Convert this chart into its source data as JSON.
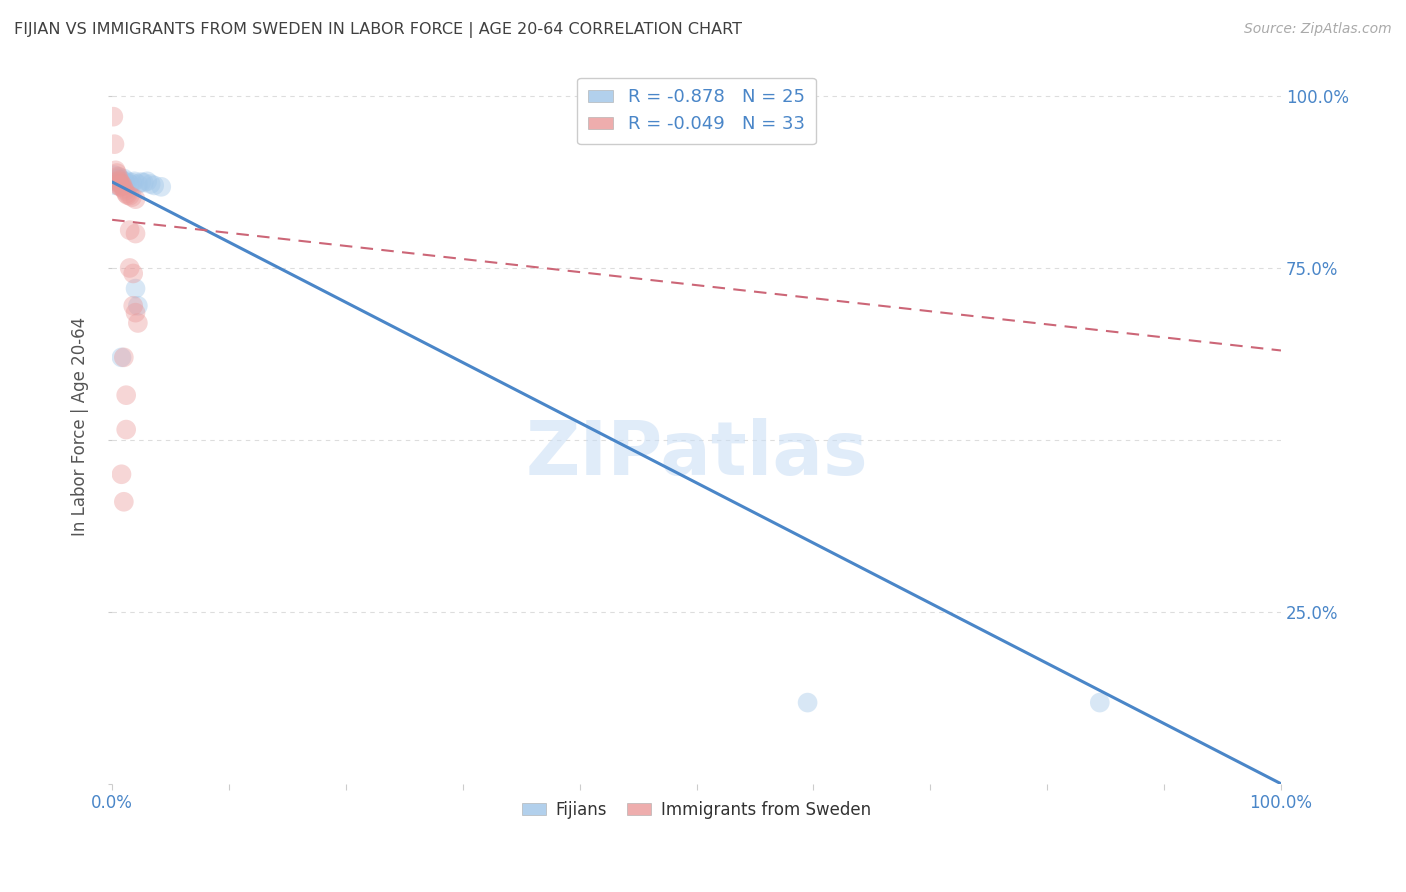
{
  "title": "FIJIAN VS IMMIGRANTS FROM SWEDEN IN LABOR FORCE | AGE 20-64 CORRELATION CHART",
  "source": "Source: ZipAtlas.com",
  "ylabel": "In Labor Force | Age 20-64",
  "watermark": "ZIPatlas",
  "legend_blue_r": "-0.878",
  "legend_blue_n": "25",
  "legend_pink_r": "-0.049",
  "legend_pink_n": "33",
  "blue_color": "#9fc5e8",
  "pink_color": "#ea9999",
  "line_blue": "#4a86c8",
  "line_pink": "#cc6677",
  "axis_label_color": "#4a86c8",
  "title_color": "#404040",
  "grid_color": "#dddddd",
  "blue_points": [
    [
      0.002,
      0.885
    ],
    [
      0.003,
      0.87
    ],
    [
      0.004,
      0.875
    ],
    [
      0.005,
      0.88
    ],
    [
      0.006,
      0.882
    ],
    [
      0.007,
      0.875
    ],
    [
      0.008,
      0.878
    ],
    [
      0.01,
      0.88
    ],
    [
      0.011,
      0.875
    ],
    [
      0.013,
      0.876
    ],
    [
      0.015,
      0.872
    ],
    [
      0.017,
      0.874
    ],
    [
      0.019,
      0.876
    ],
    [
      0.022,
      0.872
    ],
    [
      0.025,
      0.875
    ],
    [
      0.027,
      0.874
    ],
    [
      0.03,
      0.876
    ],
    [
      0.033,
      0.872
    ],
    [
      0.036,
      0.87
    ],
    [
      0.042,
      0.868
    ],
    [
      0.02,
      0.72
    ],
    [
      0.022,
      0.695
    ],
    [
      0.008,
      0.62
    ],
    [
      0.595,
      0.118
    ],
    [
      0.845,
      0.118
    ]
  ],
  "pink_points": [
    [
      0.001,
      0.97
    ],
    [
      0.002,
      0.93
    ],
    [
      0.003,
      0.892
    ],
    [
      0.004,
      0.888
    ],
    [
      0.005,
      0.883
    ],
    [
      0.005,
      0.876
    ],
    [
      0.005,
      0.87
    ],
    [
      0.006,
      0.878
    ],
    [
      0.006,
      0.873
    ],
    [
      0.007,
      0.875
    ],
    [
      0.007,
      0.868
    ],
    [
      0.008,
      0.872
    ],
    [
      0.008,
      0.868
    ],
    [
      0.009,
      0.87
    ],
    [
      0.01,
      0.865
    ],
    [
      0.011,
      0.862
    ],
    [
      0.012,
      0.858
    ],
    [
      0.013,
      0.856
    ],
    [
      0.015,
      0.855
    ],
    [
      0.017,
      0.853
    ],
    [
      0.02,
      0.85
    ],
    [
      0.015,
      0.805
    ],
    [
      0.02,
      0.8
    ],
    [
      0.015,
      0.75
    ],
    [
      0.018,
      0.742
    ],
    [
      0.018,
      0.695
    ],
    [
      0.02,
      0.685
    ],
    [
      0.022,
      0.67
    ],
    [
      0.01,
      0.62
    ],
    [
      0.012,
      0.565
    ],
    [
      0.012,
      0.515
    ],
    [
      0.008,
      0.45
    ],
    [
      0.01,
      0.41
    ]
  ],
  "blue_line": [
    [
      0.0,
      0.875
    ],
    [
      1.0,
      0.0
    ]
  ],
  "pink_line": [
    [
      0.0,
      0.82
    ],
    [
      1.0,
      0.63
    ]
  ],
  "xlim": [
    0.0,
    1.0
  ],
  "ylim": [
    0.0,
    1.04
  ],
  "xtick_positions": [
    0.0,
    0.1,
    0.2,
    0.3,
    0.4,
    0.5,
    0.6,
    0.7,
    0.8,
    0.9,
    1.0
  ],
  "ytick_positions": [
    0.0,
    0.25,
    0.5,
    0.75,
    1.0
  ],
  "xlabels_show": {
    "0.0": "0.0%",
    "1.0": "100.0%"
  },
  "right_ylabels": {
    "0.0": "",
    "0.25": "25.0%",
    "0.75": "75.0%",
    "1.0": "100.0%"
  },
  "background_color": "#ffffff",
  "marker_size": 200,
  "marker_alpha": 0.4,
  "legend_bottom_labels": [
    "Fijians",
    "Immigrants from Sweden"
  ]
}
